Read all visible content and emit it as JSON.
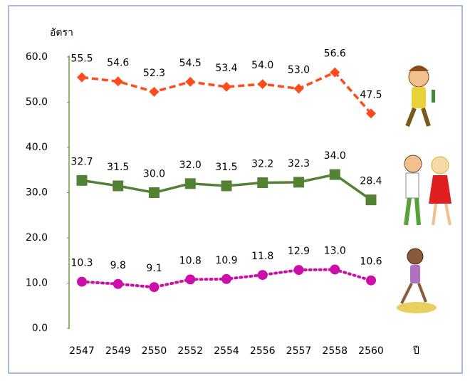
{
  "chart_data": {
    "type": "line",
    "y_label": "อัตรา",
    "x_label": "ปี",
    "categories": [
      "2547",
      "2549",
      "2550",
      "2552",
      "2554",
      "2556",
      "2557",
      "2558",
      "2560"
    ],
    "series": [
      {
        "color": "#ff4c1c",
        "dash": "dashed",
        "marker": "diamond",
        "values": [
          55.5,
          54.6,
          52.3,
          54.5,
          53.4,
          54.0,
          53.0,
          56.6,
          47.5
        ],
        "value_labels": [
          "55.5",
          "54.6",
          "52.3",
          "54.5",
          "53.4",
          "54.0",
          "53.0",
          "56.6",
          "47.5"
        ]
      },
      {
        "color": "#548235",
        "dash": "solid",
        "marker": "square",
        "values": [
          32.7,
          31.5,
          30.0,
          32.0,
          31.5,
          32.2,
          32.3,
          34.0,
          28.4
        ],
        "value_labels": [
          "32.7",
          "31.5",
          "30.0",
          "32.0",
          "31.5",
          "32.2",
          "32.3",
          "34.0",
          "28.4"
        ]
      },
      {
        "color": "#cc0fa8",
        "dash": "dotted",
        "marker": "circle",
        "values": [
          10.3,
          9.8,
          9.1,
          10.8,
          10.9,
          11.8,
          12.9,
          13.0,
          10.6
        ],
        "value_labels": [
          "10.3",
          "9.8",
          "9.1",
          "10.8",
          "10.9",
          "11.8",
          "12.9",
          "13.0",
          "10.6"
        ]
      }
    ],
    "ylim": [
      0,
      60
    ],
    "yticks": [
      {
        "value": 0,
        "label": "0.0"
      },
      {
        "value": 10,
        "label": "10.0"
      },
      {
        "value": 20,
        "label": "20.0"
      },
      {
        "value": 30,
        "label": "30.0"
      },
      {
        "value": 40,
        "label": "40.0"
      },
      {
        "value": 50,
        "label": "50.0"
      },
      {
        "value": 60,
        "label": "60.0"
      }
    ],
    "grid": false
  }
}
